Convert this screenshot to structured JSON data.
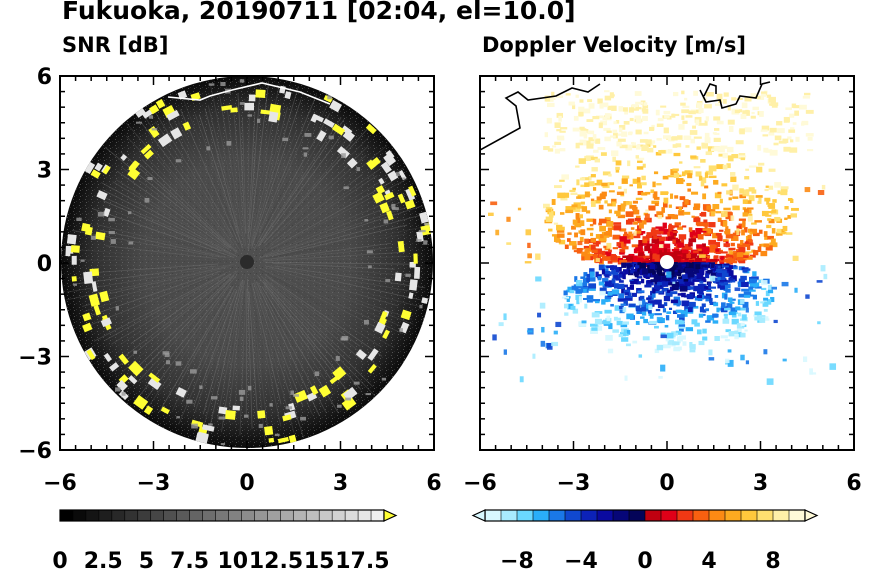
{
  "figure": {
    "title": "Fukuoka, 20190711 [02:04, el=10.0]"
  },
  "chart_data": [
    {
      "type": "heatmap",
      "subtitle": "SNR [dB]",
      "xlim": [
        -6,
        6
      ],
      "ylim": [
        -6,
        6
      ],
      "xticks": [
        "-6",
        "-3",
        "0",
        "3",
        "6"
      ],
      "yticks": [
        "6",
        "3",
        "0",
        "-3",
        "-6"
      ],
      "range_radius_km": 6,
      "colorbar": {
        "min": 0,
        "max": 18.75,
        "step": 0.75,
        "extend": "max",
        "tick_labels": [
          "0",
          "2.5",
          "5",
          "7.5",
          "10",
          "12.5",
          "15",
          "17.5"
        ],
        "colors": {
          "low": "#000000",
          "high": "#f0f0f0",
          "extend": "#ffff33"
        }
      },
      "description": "Mostly gray ring-shaped field with yellow high-SNR echoes near the edge"
    },
    {
      "type": "heatmap",
      "subtitle": "Doppler Velocity [m/s]",
      "xlim": [
        -6,
        6
      ],
      "ylim": [
        -6,
        6
      ],
      "xticks": [
        "-6",
        "-3",
        "0",
        "3",
        "6"
      ],
      "yticks": [
        "6",
        "3",
        "0",
        "-3",
        "-6"
      ],
      "colorbar": {
        "min": -10,
        "max": 10,
        "step": 1,
        "extend": "both",
        "tick_labels": [
          "−8",
          "−4",
          "0",
          "4",
          "8"
        ],
        "negative_colors": [
          "#d8f8ff",
          "#a8ecff",
          "#6ad8ff",
          "#2aaef8",
          "#1a78e8",
          "#1048d0",
          "#0c22b8",
          "#0a0aa0",
          "#060678",
          "#040458"
        ],
        "positive_colors": [
          "#c00010",
          "#e00018",
          "#f03814",
          "#f86010",
          "#fc8a14",
          "#fdaa20",
          "#ffc83c",
          "#ffe070",
          "#fff0a8",
          "#fffad8"
        ]
      }
    }
  ]
}
